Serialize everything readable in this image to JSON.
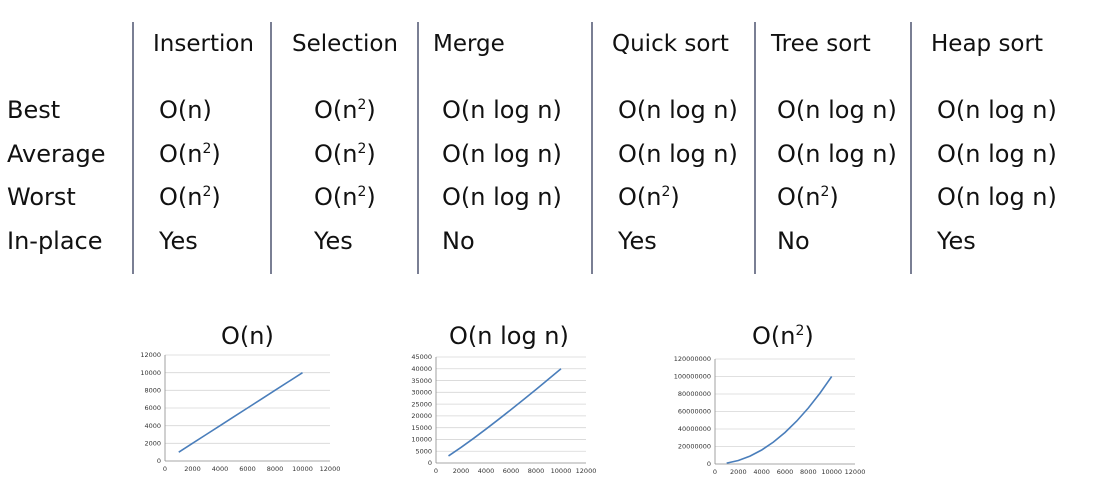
{
  "table": {
    "columns": [
      "Insertion",
      "Selection",
      "Merge",
      "Quick sort",
      "Tree sort",
      "Heap sort"
    ],
    "rows": [
      {
        "label": "Best",
        "cells": [
          "O(n)",
          "O(n²)",
          "O(n log n)",
          "O(n log n)",
          "O(n log n)",
          "O(n log n)"
        ]
      },
      {
        "label": "Average",
        "cells": [
          "O(n²)",
          "O(n²)",
          "O(n log n)",
          "O(n log n)",
          "O(n log n)",
          "O(n log n)"
        ]
      },
      {
        "label": "Worst",
        "cells": [
          "O(n²)",
          "O(n²)",
          "O(n log n)",
          "O(n²)",
          "O(n²)",
          "O(n log n)"
        ]
      },
      {
        "label": "In-place",
        "cells": [
          "Yes",
          "Yes",
          "No",
          "Yes",
          "No",
          "Yes"
        ]
      }
    ]
  },
  "chart_data": [
    {
      "type": "line",
      "title": "O(n)",
      "x": [
        1000,
        2000,
        3000,
        4000,
        5000,
        6000,
        7000,
        8000,
        9000,
        10000
      ],
      "series": [
        {
          "values": [
            1000,
            2000,
            3000,
            4000,
            5000,
            6000,
            7000,
            8000,
            9000,
            10000
          ]
        }
      ],
      "xlim": [
        0,
        12000
      ],
      "ylim": [
        0,
        12000
      ],
      "xticks": [
        0,
        2000,
        4000,
        6000,
        8000,
        10000,
        12000
      ],
      "yticks": [
        0,
        2000,
        4000,
        6000,
        8000,
        10000,
        12000
      ],
      "grid": true,
      "color": "#4a7ebb"
    },
    {
      "type": "line",
      "title": "O(n log n)",
      "x": [
        1000,
        2000,
        3000,
        4000,
        5000,
        6000,
        7000,
        8000,
        9000,
        10000
      ],
      "series": [
        {
          "values": [
            3000,
            6602,
            10431,
            14408,
            18495,
            22669,
            26915,
            31224,
            35588,
            40000
          ]
        }
      ],
      "xlim": [
        0,
        12000
      ],
      "ylim": [
        0,
        45000
      ],
      "xticks": [
        0,
        2000,
        4000,
        6000,
        8000,
        10000,
        12000
      ],
      "yticks": [
        0,
        5000,
        10000,
        15000,
        20000,
        25000,
        30000,
        35000,
        40000,
        45000
      ],
      "grid": true,
      "color": "#4a7ebb"
    },
    {
      "type": "line",
      "title": "O(n²)",
      "x": [
        1000,
        2000,
        3000,
        4000,
        5000,
        6000,
        7000,
        8000,
        9000,
        10000
      ],
      "series": [
        {
          "values": [
            1000000,
            4000000,
            9000000,
            16000000,
            25000000,
            36000000,
            49000000,
            64000000,
            81000000,
            100000000
          ]
        }
      ],
      "xlim": [
        0,
        12000
      ],
      "ylim": [
        0,
        120000000
      ],
      "xticks": [
        0,
        2000,
        4000,
        6000,
        8000,
        10000,
        12000
      ],
      "yticks": [
        0,
        20000000,
        40000000,
        60000000,
        80000000,
        100000000,
        120000000
      ],
      "grid": true,
      "color": "#4a7ebb"
    }
  ]
}
